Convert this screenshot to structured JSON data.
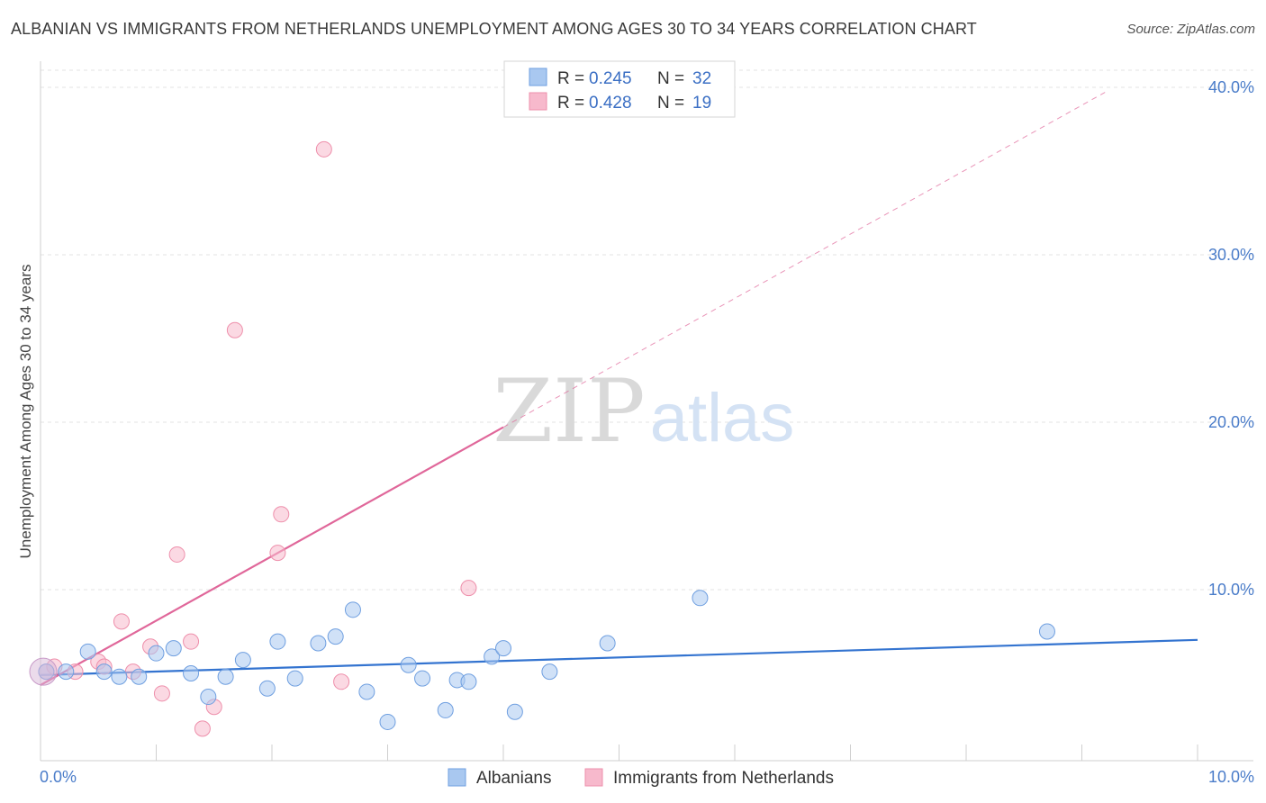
{
  "title": "ALBANIAN VS IMMIGRANTS FROM NETHERLANDS UNEMPLOYMENT AMONG AGES 30 TO 34 YEARS CORRELATION CHART",
  "source": "Source: ZipAtlas.com",
  "watermark": {
    "zip": "ZIP",
    "atlas": "atlas"
  },
  "chart_data": {
    "type": "scatter",
    "ylabel": "Unemployment Among Ages 30 to 34 years",
    "xlim": [
      0,
      10
    ],
    "ylim": [
      0,
      40
    ],
    "x_tick_labels": [
      {
        "value": 0,
        "label": "0.0%"
      },
      {
        "value": 10,
        "label": "10.0%"
      }
    ],
    "y_tick_labels": [
      {
        "value": 10,
        "label": "10.0%"
      },
      {
        "value": 20,
        "label": "20.0%"
      },
      {
        "value": 30,
        "label": "30.0%"
      },
      {
        "value": 40,
        "label": "40.0%"
      }
    ],
    "grid": true,
    "legend_top": [
      {
        "r_label": "R =",
        "r": "0.245",
        "n_label": "N =",
        "n": "32",
        "color": "#a9c8f0"
      },
      {
        "r_label": "R =",
        "r": "0.428",
        "n_label": "N =",
        "n": "19",
        "color": "#f7b9cc"
      }
    ],
    "series": [
      {
        "name": "Albanians",
        "color": "#a9c8f0",
        "stroke": "#6f9fe0",
        "trend_color": "#3474d0",
        "trend": {
          "x": [
            0,
            10
          ],
          "y": [
            4.9,
            7.0
          ],
          "dashed_until": null
        },
        "points": [
          [
            0.05,
            5.1
          ],
          [
            0.22,
            5.1
          ],
          [
            0.41,
            6.3
          ],
          [
            0.55,
            5.1
          ],
          [
            0.68,
            4.8
          ],
          [
            0.85,
            4.8
          ],
          [
            1.0,
            6.2
          ],
          [
            1.15,
            6.5
          ],
          [
            1.3,
            5.0
          ],
          [
            1.45,
            3.6
          ],
          [
            1.6,
            4.8
          ],
          [
            1.75,
            5.8
          ],
          [
            1.96,
            4.1
          ],
          [
            2.05,
            6.9
          ],
          [
            2.2,
            4.7
          ],
          [
            2.4,
            6.8
          ],
          [
            2.55,
            7.2
          ],
          [
            2.7,
            8.8
          ],
          [
            2.82,
            3.9
          ],
          [
            3.0,
            2.1
          ],
          [
            3.18,
            5.5
          ],
          [
            3.3,
            4.7
          ],
          [
            3.5,
            2.8
          ],
          [
            3.6,
            4.6
          ],
          [
            3.7,
            4.5
          ],
          [
            3.9,
            6.0
          ],
          [
            4.0,
            6.5
          ],
          [
            4.1,
            2.7
          ],
          [
            4.4,
            5.1
          ],
          [
            4.9,
            6.8
          ],
          [
            5.7,
            9.5
          ],
          [
            8.7,
            7.5
          ]
        ]
      },
      {
        "name": "Immigrants from Netherlands",
        "color": "#f7b9cc",
        "stroke": "#ee8fab",
        "trend_color": "#e0679a",
        "trend": {
          "x": [
            0,
            4.0
          ],
          "y": [
            4.3,
            19.7
          ],
          "dash_x": [
            4.0,
            9.2
          ],
          "dash_y": [
            19.7,
            39.7
          ]
        },
        "points": [
          [
            0.05,
            5.1
          ],
          [
            0.3,
            5.1
          ],
          [
            0.5,
            5.7
          ],
          [
            0.55,
            5.4
          ],
          [
            0.7,
            8.1
          ],
          [
            0.8,
            5.1
          ],
          [
            0.95,
            6.6
          ],
          [
            1.05,
            3.8
          ],
          [
            1.18,
            12.1
          ],
          [
            1.3,
            6.9
          ],
          [
            1.4,
            1.7
          ],
          [
            1.5,
            3.0
          ],
          [
            1.68,
            25.5
          ],
          [
            2.05,
            12.2
          ],
          [
            2.08,
            14.5
          ],
          [
            2.45,
            36.3
          ],
          [
            2.6,
            4.5
          ],
          [
            3.7,
            10.1
          ],
          [
            0.12,
            5.4
          ]
        ]
      }
    ]
  }
}
